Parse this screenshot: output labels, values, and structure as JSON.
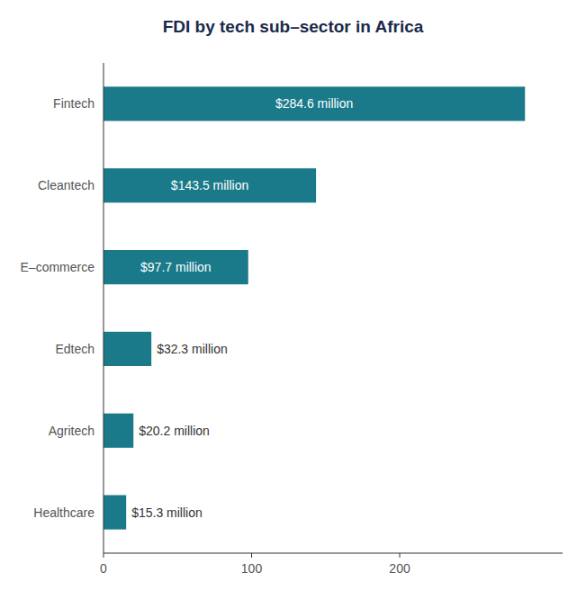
{
  "chart_data": {
    "type": "bar",
    "orientation": "horizontal",
    "title": "FDI by tech sub–sector in Africa",
    "categories": [
      "Fintech",
      "Cleantech",
      "E–commerce",
      "Edtech",
      "Agritech",
      "Healthcare"
    ],
    "values": [
      284.6,
      143.5,
      97.7,
      32.3,
      20.2,
      15.3
    ],
    "value_labels": [
      "$284.6 million",
      "$143.5 million",
      "$97.7 million",
      "$32.3 million",
      "$20.2 million",
      "$15.3 million"
    ],
    "color": "#1a7a8a",
    "xlim": [
      0,
      310
    ],
    "xticks": [
      0,
      100,
      200
    ],
    "grid": false,
    "data_labels": true
  }
}
